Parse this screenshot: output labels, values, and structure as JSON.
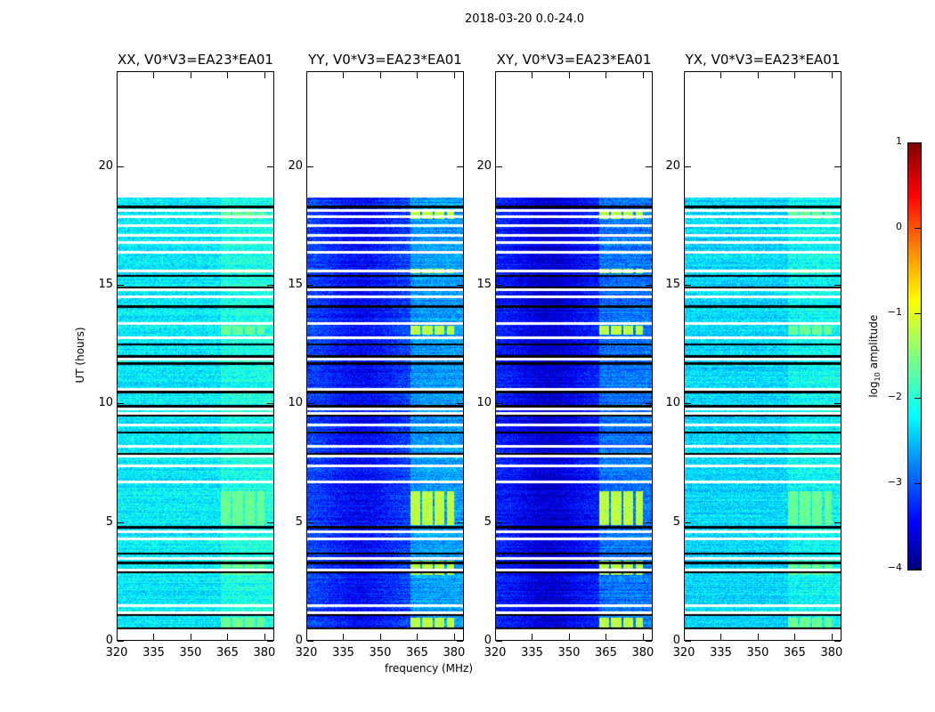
{
  "chart_data": {
    "type": "heatmap",
    "title": "2018-03-20 0.0-24.0",
    "xlabel": "frequency (MHz)",
    "ylabel": "UT (hours)",
    "xlim": [
      320,
      384
    ],
    "ylim": [
      0,
      24
    ],
    "xticks": [
      "320",
      "335",
      "350",
      "365",
      "380"
    ],
    "yticks": [
      "0",
      "5",
      "10",
      "15",
      "20"
    ],
    "data_time_range": [
      0.5,
      18.7
    ],
    "rfi_bands_mhz": [
      [
        362,
        366
      ],
      [
        367,
        371
      ],
      [
        372,
        376
      ],
      [
        377,
        380
      ]
    ],
    "white_gap_hours": [
      18.15,
      17.9,
      17.5,
      17.1,
      16.8,
      16.4,
      15.6,
      14.8,
      14.5,
      13.4,
      12.8,
      11.9,
      10.6,
      9.8,
      9.6,
      9.1,
      8.2,
      7.8,
      7.4,
      6.7,
      4.6,
      4.3,
      3.5,
      3.0,
      1.5,
      1.2
    ],
    "black_line_hours": [
      18.3,
      15.4,
      14.9,
      14.1,
      12.5,
      12.0,
      11.7,
      10.5,
      9.9,
      9.5,
      8.8,
      7.9,
      4.8,
      3.7,
      3.3,
      2.9,
      1.1,
      0.55
    ],
    "panels": [
      {
        "title": "XX, V0*V3=EA23*EA01",
        "base_log_amp": -2.2,
        "rfi_log_amp": -1.6
      },
      {
        "title": "YY, V0*V3=EA23*EA01",
        "base_log_amp": -3.0,
        "rfi_log_amp": -1.2
      },
      {
        "title": "XY, V0*V3=EA23*EA01",
        "base_log_amp": -3.2,
        "rfi_log_amp": -1.2
      },
      {
        "title": "YX, V0*V3=EA23*EA01",
        "base_log_amp": -2.3,
        "rfi_log_amp": -1.6
      }
    ],
    "colorbar": {
      "label": "log10 amplitude",
      "label_main": "log",
      "label_sub": "10",
      "label_rest": " amplitude",
      "range": [
        -4,
        1
      ],
      "ticks": [
        "1",
        "0",
        "−1",
        "−2",
        "−3",
        "−4"
      ],
      "colormap": "jet"
    }
  }
}
